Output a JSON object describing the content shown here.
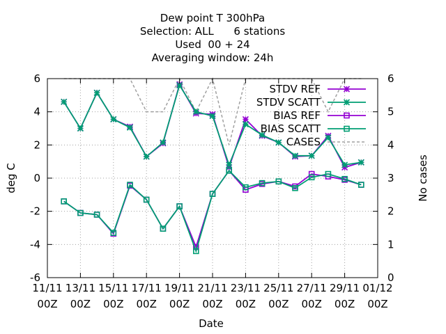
{
  "chart_data": {
    "type": "line",
    "title_lines": [
      "Dew point T 300hPa",
      "Selection: ALL      6 stations",
      "Used  00 + 24",
      "Averaging window: 24h"
    ],
    "xlabel": "Date",
    "ylabel": "deg C",
    "y2label": "No cases",
    "ylim": [
      -6,
      6
    ],
    "y2lim": [
      0,
      6
    ],
    "yticks": [
      -6,
      -4,
      -2,
      0,
      2,
      4,
      6
    ],
    "y2ticks": [
      0,
      1,
      2,
      3,
      4,
      5,
      6
    ],
    "xticks": [
      {
        "day": 0,
        "l1": "11/11",
        "l2": "00Z"
      },
      {
        "day": 2,
        "l1": "13/11",
        "l2": "00Z"
      },
      {
        "day": 4,
        "l1": "15/11",
        "l2": "00Z"
      },
      {
        "day": 6,
        "l1": "17/11",
        "l2": "00Z"
      },
      {
        "day": 8,
        "l1": "19/11",
        "l2": "00Z"
      },
      {
        "day": 10,
        "l1": "21/11",
        "l2": "00Z"
      },
      {
        "day": 12,
        "l1": "23/11",
        "l2": "00Z"
      },
      {
        "day": 14,
        "l1": "25/11",
        "l2": "00Z"
      },
      {
        "day": 16,
        "l1": "27/11",
        "l2": "00Z"
      },
      {
        "day": 18,
        "l1": "29/11",
        "l2": "00Z"
      },
      {
        "day": 20,
        "l1": "01/12",
        "l2": "00Z"
      }
    ],
    "xlim_days": [
      0,
      20
    ],
    "grid": true,
    "legend_position": "top-right",
    "series": [
      {
        "name": "STDV REF",
        "color": "#9400d3",
        "marker": "star",
        "axis": "y1",
        "dash": false,
        "x": [
          1,
          2,
          3,
          4,
          5,
          6,
          7,
          8,
          9,
          10,
          11,
          12,
          13,
          14,
          15,
          16,
          17,
          18,
          19
        ],
        "values": [
          4.6,
          3.0,
          5.15,
          3.55,
          3.1,
          1.3,
          2.1,
          5.65,
          3.9,
          3.85,
          0.65,
          3.55,
          2.55,
          2.15,
          1.3,
          1.35,
          2.55,
          0.65,
          0.95
        ]
      },
      {
        "name": "STDV SCATT",
        "color": "#009e73",
        "marker": "star",
        "axis": "y1",
        "dash": false,
        "x": [
          1,
          2,
          3,
          4,
          5,
          6,
          7,
          8,
          9,
          10,
          11,
          12,
          13,
          14,
          15,
          16,
          17,
          18,
          19
        ],
        "values": [
          4.6,
          3.0,
          5.15,
          3.55,
          3.05,
          1.3,
          2.15,
          5.6,
          4.0,
          3.75,
          0.8,
          3.25,
          2.6,
          2.15,
          1.35,
          1.35,
          2.45,
          0.8,
          0.95
        ]
      },
      {
        "name": "BIAS REF",
        "color": "#9400d3",
        "marker": "square",
        "axis": "y1",
        "dash": false,
        "x": [
          1,
          2,
          3,
          4,
          5,
          6,
          7,
          8,
          9,
          10,
          11,
          12,
          13,
          14,
          15,
          16,
          17,
          18,
          19
        ],
        "values": [
          -1.4,
          -2.1,
          -2.2,
          -3.35,
          -0.45,
          -1.3,
          -3.05,
          -1.7,
          -4.15,
          -0.95,
          0.45,
          -0.7,
          -0.35,
          -0.2,
          -0.5,
          0.25,
          0.1,
          -0.1,
          -0.4
        ]
      },
      {
        "name": "BIAS SCATT",
        "color": "#009e73",
        "marker": "square",
        "axis": "y1",
        "dash": false,
        "x": [
          1,
          2,
          3,
          4,
          5,
          6,
          7,
          8,
          9,
          10,
          11,
          12,
          13,
          14,
          15,
          16,
          17,
          18,
          19
        ],
        "values": [
          -1.4,
          -2.1,
          -2.2,
          -3.3,
          -0.4,
          -1.3,
          -3.05,
          -1.7,
          -4.4,
          -0.95,
          0.45,
          -0.55,
          -0.3,
          -0.2,
          -0.6,
          0.05,
          0.25,
          -0.05,
          -0.4
        ]
      },
      {
        "name": "CASES",
        "color": "#a0a0a0",
        "marker": "none",
        "axis": "y2",
        "dash": true,
        "x": [
          1,
          2,
          3,
          4,
          5,
          6,
          7,
          8,
          9,
          10,
          11,
          12,
          13,
          14,
          15,
          16,
          17,
          18,
          19
        ],
        "values": [
          6,
          6,
          6,
          6,
          6,
          5,
          5,
          6,
          5,
          6,
          4,
          6,
          6,
          6,
          6,
          6,
          5,
          6,
          6
        ]
      }
    ]
  }
}
